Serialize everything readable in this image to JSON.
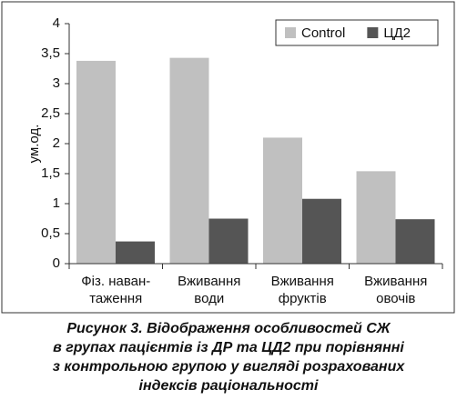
{
  "chart_data": {
    "type": "bar",
    "ylabel": "ум.од.",
    "categories": [
      [
        "Фіз. наван-",
        "таження"
      ],
      [
        "Вживання",
        "води"
      ],
      [
        "Вживання",
        "фруктів"
      ],
      [
        "Вживання",
        "овочів"
      ]
    ],
    "series": [
      {
        "name": "Control",
        "color": "#c0c0c0",
        "values": [
          3.38,
          3.43,
          2.1,
          1.54
        ]
      },
      {
        "name": "ЦД2",
        "color": "#555555",
        "values": [
          0.37,
          0.75,
          1.08,
          0.74
        ]
      }
    ],
    "ylim": [
      0,
      4
    ],
    "yticks": [
      0,
      {
        "value": 0.5,
        "label": "0,5"
      },
      1,
      {
        "value": 1.5,
        "label": "1,5"
      },
      2,
      {
        "value": 2.5,
        "label": "2,5"
      },
      3,
      {
        "value": 3.5,
        "label": "3,5"
      },
      4
    ],
    "legend": "top-right",
    "caption": [
      "Рисунок 3.  Відображення особливостей СЖ",
      "в групах пацієнтів із ДР та ЦД2 при порівнянні",
      "з контрольною групою у вигляді розрахованих",
      "індексів раціональності"
    ]
  }
}
